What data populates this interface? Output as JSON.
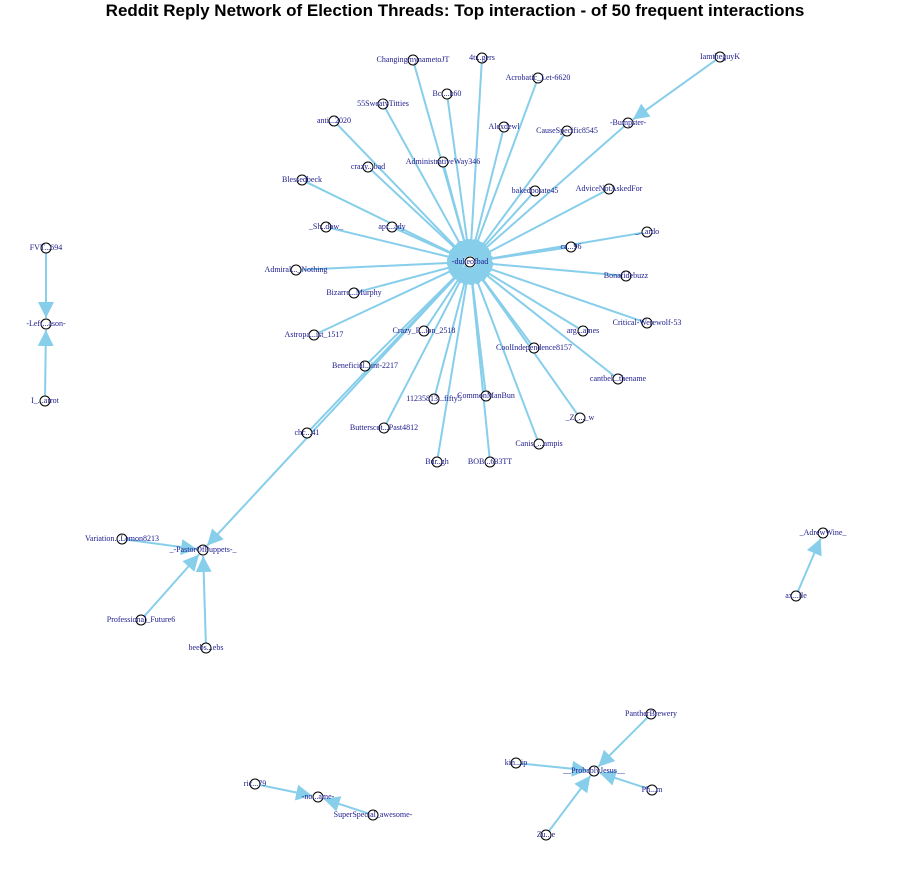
{
  "title": "Reddit Reply Network of Election Threads: Top interaction - of 50 frequent interactions",
  "colors": {
    "edge": "#87ceeb",
    "label": "#1a1a8c",
    "node_fill": "#ffffff",
    "node_stroke": "#000000"
  },
  "nodes": [
    {
      "id": "hub",
      "label": "-dukeofbad"
    },
    {
      "id": "changing",
      "label": "ChangingmynametoJT"
    },
    {
      "id": "4tr",
      "label": "4tr..gers"
    },
    {
      "id": "acrobatic",
      "label": "Acrobatic_Let-6620"
    },
    {
      "id": "b60",
      "label": "Bc....k60"
    },
    {
      "id": "55",
      "label": "55SweatyTitties"
    },
    {
      "id": "antica",
      "label": "anti...2020"
    },
    {
      "id": "alex",
      "label": "Alexdewl"
    },
    {
      "id": "cause",
      "label": "CauseSpecific8545"
    },
    {
      "id": "administ",
      "label": "AdministrativeWay346"
    },
    {
      "id": "crazy",
      "label": "crazy...bad"
    },
    {
      "id": "blessed",
      "label": "Blessedbeck"
    },
    {
      "id": "baked",
      "label": "bakedpotate45"
    },
    {
      "id": "advice",
      "label": "AdviceNotAskedFor"
    },
    {
      "id": "shadow",
      "label": "_Sh..dow_"
    },
    {
      "id": "apr",
      "label": "apr...ady"
    },
    {
      "id": "ca96",
      "label": "ca...96"
    },
    {
      "id": "ardo",
      "label": "_...ardo"
    },
    {
      "id": "admiral",
      "label": "Admiral..._Nothing"
    },
    {
      "id": "bonafide",
      "label": "Bonafidebuzz"
    },
    {
      "id": "bizarre",
      "label": "Bizarre...Murphy"
    },
    {
      "id": "astro",
      "label": "Astropa...ist_1517"
    },
    {
      "id": "crazyp",
      "label": "Crazy_P...ion_2518"
    },
    {
      "id": "critical",
      "label": "Critical-Werewolf-53"
    },
    {
      "id": "arg",
      "label": "arg...ames"
    },
    {
      "id": "coolind",
      "label": "CoolIndependence8157"
    },
    {
      "id": "benef",
      "label": "Beneficial...int-2217"
    },
    {
      "id": "cant",
      "label": "cantbel...thename"
    },
    {
      "id": "11235",
      "label": "11235813...fifty5"
    },
    {
      "id": "commonm",
      "label": "CommonManBun"
    },
    {
      "id": "z_w",
      "label": "_Z_..._w"
    },
    {
      "id": "chc",
      "label": "chc...41"
    },
    {
      "id": "butter",
      "label": "Butterscot...Past4812"
    },
    {
      "id": "canis",
      "label": "Canis_...ampis"
    },
    {
      "id": "bur",
      "label": "Bur..gh"
    },
    {
      "id": "bo",
      "label": "BOB...633TT"
    },
    {
      "id": "iamtheg",
      "label": "IamtheguyK"
    },
    {
      "id": "bumper",
      "label": "-Bumpster-"
    },
    {
      "id": "fvt",
      "label": "FVT...694"
    },
    {
      "id": "leftpason",
      "label": "-Left...ason-"
    },
    {
      "id": "iparrot",
      "label": "I_...arrot"
    },
    {
      "id": "pastor",
      "label": "_-PastorOfPuppets-_"
    },
    {
      "id": "variation",
      "label": "Variation...Lemon8213"
    },
    {
      "id": "prof",
      "label": "Professional_Future6"
    },
    {
      "id": "beebs",
      "label": "beebs...ebs"
    },
    {
      "id": "adrewine",
      "label": "_AdrewWine_"
    },
    {
      "id": "ax",
      "label": "ax...lle"
    },
    {
      "id": "panther",
      "label": "PantherBrewery"
    },
    {
      "id": "probably",
      "label": "__ProbablyJesus__"
    },
    {
      "id": "kin",
      "label": "kin...ip"
    },
    {
      "id": "ph",
      "label": "Ph...m"
    },
    {
      "id": "zu",
      "label": "Zu...e"
    },
    {
      "id": "ric",
      "label": "ric...79"
    },
    {
      "id": "noname",
      "label": "-no...ame-"
    },
    {
      "id": "superspe",
      "label": "SuperSpecial_awesome-"
    }
  ],
  "edges": [
    [
      "changing",
      "hub"
    ],
    [
      "4tr",
      "hub"
    ],
    [
      "acrobatic",
      "hub"
    ],
    [
      "b60",
      "hub"
    ],
    [
      "55",
      "hub"
    ],
    [
      "antica",
      "hub"
    ],
    [
      "alex",
      "hub"
    ],
    [
      "cause",
      "hub"
    ],
    [
      "administ",
      "hub"
    ],
    [
      "crazy",
      "hub"
    ],
    [
      "blessed",
      "hub"
    ],
    [
      "baked",
      "hub"
    ],
    [
      "advice",
      "hub"
    ],
    [
      "shadow",
      "hub"
    ],
    [
      "apr",
      "hub"
    ],
    [
      "ca96",
      "hub"
    ],
    [
      "ardo",
      "hub"
    ],
    [
      "admiral",
      "hub"
    ],
    [
      "bonafide",
      "hub"
    ],
    [
      "bizarre",
      "hub"
    ],
    [
      "astro",
      "hub"
    ],
    [
      "crazyp",
      "hub"
    ],
    [
      "critical",
      "hub"
    ],
    [
      "arg",
      "hub"
    ],
    [
      "coolind",
      "hub"
    ],
    [
      "benef",
      "hub"
    ],
    [
      "cant",
      "hub"
    ],
    [
      "11235",
      "hub"
    ],
    [
      "commonm",
      "hub"
    ],
    [
      "z_w",
      "hub"
    ],
    [
      "butter",
      "hub"
    ],
    [
      "canis",
      "hub"
    ],
    [
      "bur",
      "hub"
    ],
    [
      "bo",
      "hub"
    ],
    [
      "bumper",
      "hub"
    ],
    [
      "chc",
      "hub"
    ],
    [
      "iamtheg",
      "bumper"
    ],
    [
      "hub",
      "pastor"
    ],
    [
      "fvt",
      "leftpason"
    ],
    [
      "iparrot",
      "leftpason"
    ],
    [
      "variation",
      "pastor"
    ],
    [
      "prof",
      "pastor"
    ],
    [
      "beebs",
      "pastor"
    ],
    [
      "ax",
      "adrewine"
    ],
    [
      "panther",
      "probably"
    ],
    [
      "kin",
      "probably"
    ],
    [
      "ph",
      "probably"
    ],
    [
      "zu",
      "probably"
    ],
    [
      "ric",
      "noname"
    ],
    [
      "superspe",
      "noname"
    ]
  ]
}
